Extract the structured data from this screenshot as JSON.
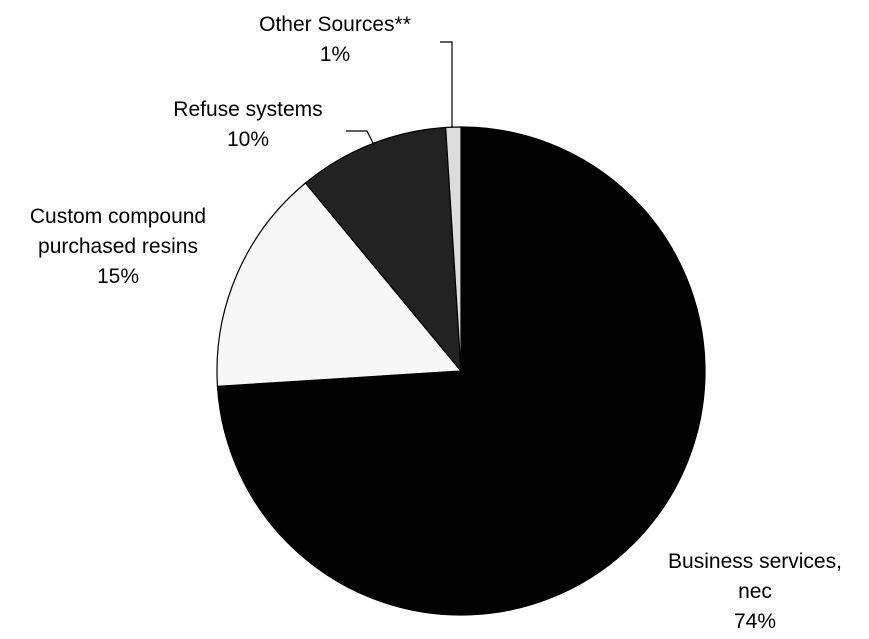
{
  "chart_data": {
    "type": "pie",
    "title": "",
    "start_angle_deg": 0,
    "direction": "clockwise",
    "slices": [
      {
        "label_lines": [
          "Business services,",
          "nec"
        ],
        "percent_label": "74%",
        "value": 74,
        "color": "#000000"
      },
      {
        "label_lines": [
          "Custom compound",
          "purchased resins"
        ],
        "percent_label": "15%",
        "value": 15,
        "color": "#f7f7f7"
      },
      {
        "label_lines": [
          "Refuse systems"
        ],
        "percent_label": "10%",
        "value": 10,
        "color": "#222222"
      },
      {
        "label_lines": [
          "Other Sources**"
        ],
        "percent_label": "1%",
        "value": 1,
        "color": "#dddddd"
      }
    ]
  }
}
